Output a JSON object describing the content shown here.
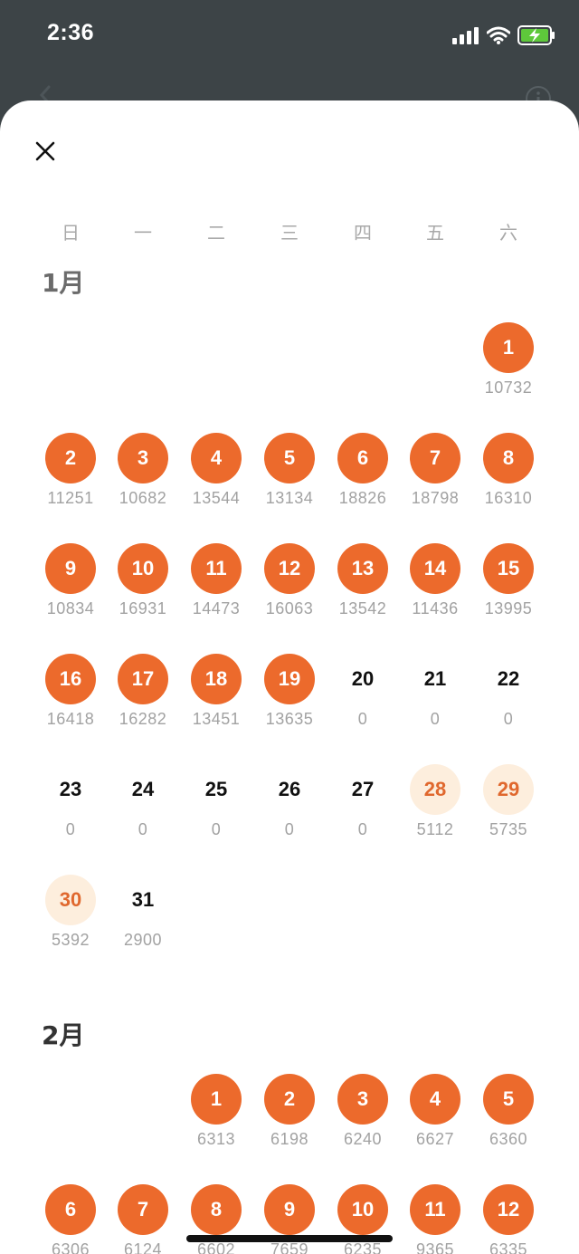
{
  "status_bar": {
    "time": "2:36"
  },
  "weekdays": [
    "日",
    "一",
    "二",
    "三",
    "四",
    "五",
    "六"
  ],
  "months": [
    {
      "title": "1月",
      "start_weekday": 6,
      "days": [
        {
          "day": "1",
          "steps": "10732",
          "state": "full"
        },
        {
          "day": "2",
          "steps": "11251",
          "state": "full"
        },
        {
          "day": "3",
          "steps": "10682",
          "state": "full"
        },
        {
          "day": "4",
          "steps": "13544",
          "state": "full"
        },
        {
          "day": "5",
          "steps": "13134",
          "state": "full"
        },
        {
          "day": "6",
          "steps": "18826",
          "state": "full"
        },
        {
          "day": "7",
          "steps": "18798",
          "state": "full"
        },
        {
          "day": "8",
          "steps": "16310",
          "state": "full"
        },
        {
          "day": "9",
          "steps": "10834",
          "state": "full"
        },
        {
          "day": "10",
          "steps": "16931",
          "state": "full"
        },
        {
          "day": "11",
          "steps": "14473",
          "state": "full"
        },
        {
          "day": "12",
          "steps": "16063",
          "state": "full"
        },
        {
          "day": "13",
          "steps": "13542",
          "state": "full"
        },
        {
          "day": "14",
          "steps": "11436",
          "state": "full"
        },
        {
          "day": "15",
          "steps": "13995",
          "state": "full"
        },
        {
          "day": "16",
          "steps": "16418",
          "state": "full"
        },
        {
          "day": "17",
          "steps": "16282",
          "state": "full"
        },
        {
          "day": "18",
          "steps": "13451",
          "state": "full"
        },
        {
          "day": "19",
          "steps": "13635",
          "state": "full"
        },
        {
          "day": "20",
          "steps": "0",
          "state": "none"
        },
        {
          "day": "21",
          "steps": "0",
          "state": "none"
        },
        {
          "day": "22",
          "steps": "0",
          "state": "none"
        },
        {
          "day": "23",
          "steps": "0",
          "state": "none"
        },
        {
          "day": "24",
          "steps": "0",
          "state": "none"
        },
        {
          "day": "25",
          "steps": "0",
          "state": "none"
        },
        {
          "day": "26",
          "steps": "0",
          "state": "none"
        },
        {
          "day": "27",
          "steps": "0",
          "state": "none"
        },
        {
          "day": "28",
          "steps": "5112",
          "state": "light"
        },
        {
          "day": "29",
          "steps": "5735",
          "state": "light"
        },
        {
          "day": "30",
          "steps": "5392",
          "state": "light"
        },
        {
          "day": "31",
          "steps": "2900",
          "state": "none"
        }
      ]
    },
    {
      "title": "2月",
      "start_weekday": 2,
      "days": [
        {
          "day": "1",
          "steps": "6313",
          "state": "full"
        },
        {
          "day": "2",
          "steps": "6198",
          "state": "full"
        },
        {
          "day": "3",
          "steps": "6240",
          "state": "full"
        },
        {
          "day": "4",
          "steps": "6627",
          "state": "full"
        },
        {
          "day": "5",
          "steps": "6360",
          "state": "full"
        },
        {
          "day": "6",
          "steps": "6306",
          "state": "full"
        },
        {
          "day": "7",
          "steps": "6124",
          "state": "full"
        },
        {
          "day": "8",
          "steps": "6602",
          "state": "full"
        },
        {
          "day": "9",
          "steps": "7659",
          "state": "full"
        },
        {
          "day": "10",
          "steps": "6235",
          "state": "full"
        },
        {
          "day": "11",
          "steps": "9365",
          "state": "full"
        },
        {
          "day": "12",
          "steps": "6335",
          "state": "full"
        }
      ]
    }
  ],
  "colors": {
    "accent": "#ec6a2c",
    "accent_light": "#fdeedd",
    "header_bg": "#3d4447"
  }
}
